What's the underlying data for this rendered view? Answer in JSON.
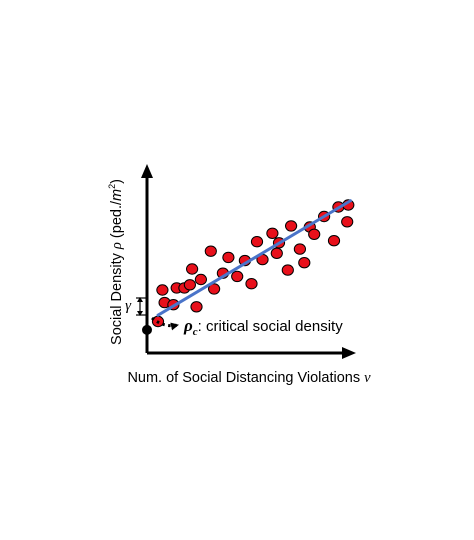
{
  "x_axis": {
    "label_main": "Num. of Social Distancing Violations ",
    "label_var": "v"
  },
  "y_axis": {
    "label_main": "Social Density ",
    "label_var": "ρ",
    "label_unit_open": " (ped./",
    "label_unit_m": "m",
    "label_unit_exp": "2",
    "label_unit_close": ")"
  },
  "gamma": {
    "symbol": "γ"
  },
  "critical": {
    "symbol": "ρ",
    "subscript": "c",
    "text": ": critical social density"
  },
  "colors": {
    "point_fill": "#e8101b",
    "point_stroke": "#000000",
    "fit_line": "#4a74c9",
    "axes": "#000000",
    "critical_point": "#000000"
  },
  "chart_data": {
    "type": "scatter",
    "xlabel": "Num. of Social Distancing Violations v",
    "ylabel": "Social Density ρ (ped./m²)",
    "points": [
      [
        1.0,
        3.0
      ],
      [
        1.4,
        6.0
      ],
      [
        1.6,
        4.8
      ],
      [
        2.7,
        6.2
      ],
      [
        2.4,
        4.6
      ],
      [
        3.4,
        6.2
      ],
      [
        4.1,
        8.0
      ],
      [
        3.9,
        6.5
      ],
      [
        4.5,
        4.4
      ],
      [
        4.9,
        7.0
      ],
      [
        6.1,
        6.1
      ],
      [
        5.8,
        9.7
      ],
      [
        6.9,
        7.6
      ],
      [
        7.4,
        9.1
      ],
      [
        8.2,
        7.3
      ],
      [
        8.9,
        8.8
      ],
      [
        9.5,
        6.6
      ],
      [
        10.0,
        10.6
      ],
      [
        10.5,
        8.9
      ],
      [
        11.8,
        9.5
      ],
      [
        12.0,
        10.5
      ],
      [
        11.4,
        11.4
      ],
      [
        12.8,
        7.9
      ],
      [
        13.1,
        12.1
      ],
      [
        13.9,
        9.9
      ],
      [
        14.3,
        8.6
      ],
      [
        14.8,
        12.0
      ],
      [
        15.2,
        11.3
      ],
      [
        16.1,
        13.0
      ],
      [
        17.4,
        13.9
      ],
      [
        18.2,
        12.5
      ],
      [
        18.3,
        14.1
      ],
      [
        17.0,
        10.7
      ]
    ],
    "fit_line": {
      "x": [
        1.0,
        18.5
      ],
      "y": [
        3.6,
        14.5
      ]
    },
    "critical_point": [
      0,
      2.2
    ],
    "xlim": [
      0,
      21
    ],
    "ylim": [
      0,
      20
    ],
    "grid": false,
    "legend": false
  }
}
